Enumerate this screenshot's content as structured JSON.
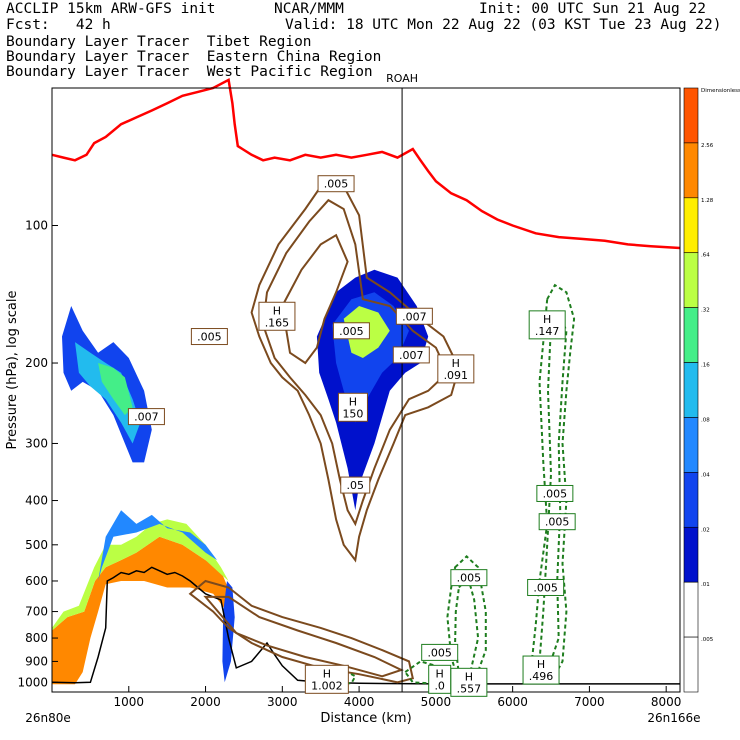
{
  "header": {
    "model": "ACCLIP 15km ARW-GFS init",
    "org": "NCAR/MMM",
    "init": "Init: 00 UTC Sun 21 Aug 22",
    "fcst": "Fcst:   42 h",
    "valid": "Valid: 18 UTC Mon 22 Aug 22 (03 KST Tue 23 Aug 22)"
  },
  "legend": [
    {
      "label": "Boundary Layer Tracer  Tibet Region",
      "color": "#000000"
    },
    {
      "label": "Boundary Layer Tracer  Eastern China Region",
      "color": "#8b5a2b"
    },
    {
      "label": "Boundary Layer Tracer  West Pacific Region",
      "color": "#2e8b22"
    }
  ],
  "colors": {
    "tropopause": "#ff0000",
    "terrain": "#000000",
    "china": "#7b4a1e",
    "pacific": "#1e7d1e"
  },
  "chart_data": {
    "type": "cross-section",
    "xlabel": "Distance (km)",
    "ylabel": "Pressure (hPa), log scale",
    "x_ticks": [
      "1000",
      "2000",
      "3000",
      "4000",
      "5000",
      "6000",
      "7000",
      "8000"
    ],
    "x_tick_values": [
      1000,
      2000,
      3000,
      4000,
      5000,
      6000,
      7000,
      8000
    ],
    "xlim": [
      0,
      8180
    ],
    "y_ticks": [
      "100",
      "200",
      "300",
      "400",
      "500",
      "600",
      "700",
      "800",
      "900",
      "1000"
    ],
    "y_tick_values": [
      100,
      200,
      300,
      400,
      500,
      600,
      700,
      800,
      900,
      1000
    ],
    "ylim": [
      1050,
      50
    ],
    "y_scale": "log",
    "left_label": "26n80e",
    "right_label": "26n166e",
    "marker": {
      "label": "ROAH",
      "x": 4560
    },
    "colorbar": {
      "labels": [
        "Dimensionless",
        "2.56",
        "1.28",
        ".64",
        ".32",
        ".16",
        ".08",
        ".04",
        ".02",
        ".01",
        ".005"
      ],
      "colors": [
        "#ff5500",
        "#ff8800",
        "#ffee00",
        "#bbff44",
        "#44ee88",
        "#22bbee",
        "#2288ff",
        "#1144ee",
        "#0011cc",
        "#ffffff",
        "#ffffff"
      ]
    },
    "annotations": [
      {
        "text": ".005",
        "x": 3700,
        "p": 81
      },
      {
        "text": "H .165",
        "x": 2930,
        "p": 158
      },
      {
        "text": ".005",
        "x": 2050,
        "p": 175
      },
      {
        "text": ".005",
        "x": 3900,
        "p": 170
      },
      {
        "text": ".007",
        "x": 4720,
        "p": 158
      },
      {
        "text": ".007",
        "x": 4680,
        "p": 192
      },
      {
        "text": "H .091",
        "x": 5260,
        "p": 206
      },
      {
        "text": "H 150",
        "x": 3920,
        "p": 250
      },
      {
        "text": ".007",
        "x": 1230,
        "p": 262
      },
      {
        "text": ".05",
        "x": 3950,
        "p": 370
      },
      {
        "text": "H .147",
        "x": 6450,
        "p": 165
      },
      {
        "text": ".005",
        "x": 6550,
        "p": 386
      },
      {
        "text": ".005",
        "x": 6580,
        "p": 445
      },
      {
        "text": ".005",
        "x": 6430,
        "p": 620
      },
      {
        "text": ".005",
        "x": 5430,
        "p": 590
      },
      {
        "text": ".005",
        "x": 5050,
        "p": 860
      },
      {
        "text": "H .496",
        "x": 6370,
        "p": 940
      },
      {
        "text": "H 1.002",
        "x": 3580,
        "p": 985
      },
      {
        "text": "H .0",
        "x": 5050,
        "p": 985
      },
      {
        "text": "H .557",
        "x": 5430,
        "p": 1000
      }
    ]
  }
}
